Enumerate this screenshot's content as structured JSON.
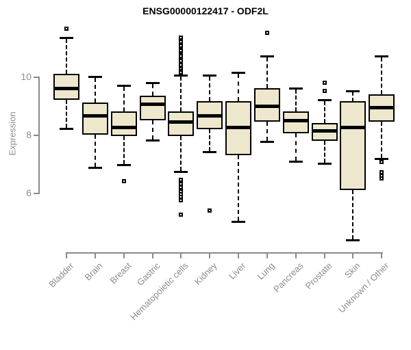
{
  "title": "ENSG00000122417 - ODF2L",
  "chart_data": {
    "type": "boxplot",
    "title": "ENSG00000122417 - ODF2L",
    "xlabel": "",
    "ylabel": "Expression",
    "yticks": [
      6,
      8,
      10
    ],
    "ylim": [
      4.0,
      11.9
    ],
    "grid": false,
    "legend": "none",
    "colors": {
      "box_fill": "#EDE8CD",
      "box_border": "#000000",
      "median": "#000000",
      "axis": "#898989",
      "tick_label": "#8C8C8C",
      "title": "#000000"
    },
    "categories": [
      "Bladder",
      "Brain",
      "Breast",
      "Gastric",
      "Hematopoietic cells",
      "Kidney",
      "Liver",
      "Lung",
      "Pancreas",
      "Prostate",
      "Skin",
      "Unknown / Other"
    ],
    "series": [
      {
        "name": "Bladder",
        "low": 8.2,
        "q1": 9.2,
        "median": 9.6,
        "q3": 10.1,
        "high": 11.35,
        "outliers": [
          11.65
        ]
      },
      {
        "name": "Brain",
        "low": 6.85,
        "q1": 8.0,
        "median": 8.65,
        "q3": 9.1,
        "high": 10.0,
        "outliers": []
      },
      {
        "name": "Breast",
        "low": 6.95,
        "q1": 7.95,
        "median": 8.25,
        "q3": 8.8,
        "high": 9.7,
        "outliers": [
          6.4
        ]
      },
      {
        "name": "Gastric",
        "low": 7.8,
        "q1": 8.5,
        "median": 9.05,
        "q3": 9.35,
        "high": 9.8,
        "outliers": []
      },
      {
        "name": "Hematopoietic cells",
        "low": 6.7,
        "q1": 7.95,
        "median": 8.45,
        "q3": 8.8,
        "high": 10.05,
        "outliers": [
          11.35,
          11.2,
          11.1,
          11.05,
          10.95,
          10.9,
          10.8,
          10.75,
          10.7,
          10.6,
          10.55,
          10.45,
          10.4,
          10.3,
          10.25,
          10.2,
          10.15,
          6.45,
          6.35,
          6.3,
          6.2,
          6.1,
          6.05,
          5.95,
          5.85,
          5.75,
          5.25
        ]
      },
      {
        "name": "Kidney",
        "low": 7.4,
        "q1": 8.2,
        "median": 8.65,
        "q3": 9.15,
        "high": 10.05,
        "outliers": [
          5.4
        ]
      },
      {
        "name": "Liver",
        "low": 5.0,
        "q1": 7.3,
        "median": 8.25,
        "q3": 9.15,
        "high": 10.15,
        "outliers": []
      },
      {
        "name": "Lung",
        "low": 7.75,
        "q1": 8.45,
        "median": 9.0,
        "q3": 9.6,
        "high": 10.7,
        "outliers": [
          11.5
        ]
      },
      {
        "name": "Pancreas",
        "low": 7.05,
        "q1": 8.05,
        "median": 8.5,
        "q3": 8.8,
        "high": 9.6,
        "outliers": []
      },
      {
        "name": "Prostate",
        "low": 7.0,
        "q1": 7.8,
        "median": 8.15,
        "q3": 8.4,
        "high": 9.2,
        "outliers": [
          9.8,
          9.5
        ]
      },
      {
        "name": "Skin",
        "low": 4.35,
        "q1": 6.1,
        "median": 8.25,
        "q3": 9.15,
        "high": 9.5,
        "outliers": []
      },
      {
        "name": "Unknown / Other",
        "low": 7.15,
        "q1": 8.45,
        "median": 8.95,
        "q3": 9.4,
        "high": 10.7,
        "outliers": [
          7.05,
          6.7,
          6.6,
          6.5
        ]
      }
    ]
  }
}
